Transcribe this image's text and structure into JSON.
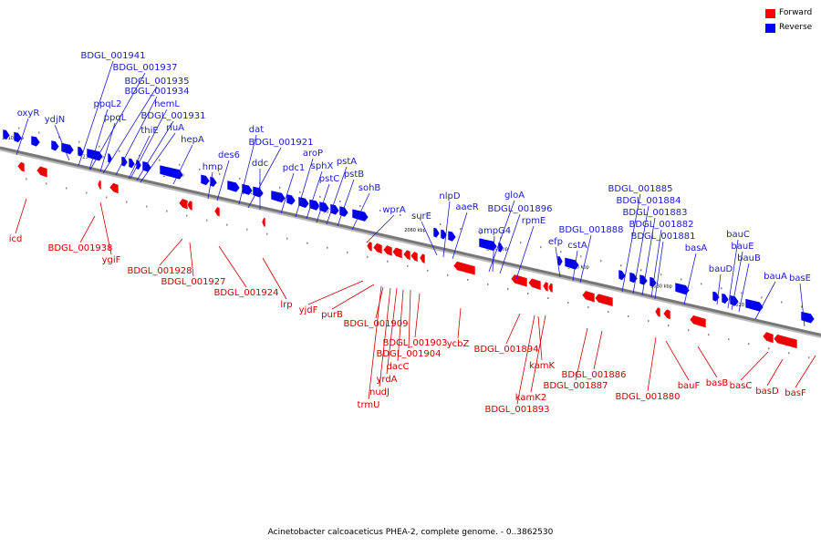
{
  "legend": {
    "forward": {
      "label": "Forward",
      "color": "#ff0000"
    },
    "reverse": {
      "label": "Reverse",
      "color": "#0000ff"
    }
  },
  "caption": "Acinetobacter calcoaceticus PHEA-2, complete genome. - 0..3862530",
  "colors": {
    "forward": "#ee0000",
    "reverse": "#0000ee",
    "forward_label": "#cc0000",
    "reverse_label": "#1a1acc",
    "backbone": "#777777"
  },
  "scale_ticks": [
    "2110 kbp",
    "2100 kbp",
    "2090 kbp",
    "2080 kbp",
    "2070 kbp",
    "2060 kbp",
    "2050 kbp",
    "2040 kbp",
    "2030 kbp",
    "2020 kbp"
  ],
  "reverse_labels": [
    "oxyR",
    "ydjN",
    "BDGL_001941",
    "BDGL_001937",
    "BDGL_001935",
    "BDGL_001934",
    "ppqL2",
    "ppqL",
    "hemL",
    "BDGL_001931",
    "thiE",
    "rluA",
    "hepA",
    "hmp",
    "des6",
    "dat",
    "BDGL_001921",
    "ddc",
    "pdc1",
    "aroP",
    "sphX",
    "pstC",
    "pstA",
    "pstB",
    "sohB",
    "wprA",
    "surE",
    "nlpD",
    "aaeR",
    "gloA",
    "BDGL_001896",
    "ampG4",
    "rpmE",
    "efp",
    "BDGL_001888",
    "cstA",
    "BDGL_001885",
    "BDGL_001884",
    "BDGL_001883",
    "BDGL_001882",
    "BDGL_001881",
    "basA",
    "bauC",
    "bauD",
    "bauE",
    "bauB",
    "bauA",
    "basE"
  ],
  "forward_labels": [
    "icd",
    "BDGL_001938",
    "ygiF",
    "BDGL_001928",
    "BDGL_001927",
    "BDGL_001924",
    "lrp",
    "yjdF",
    "purB",
    "BDGL_001909",
    "BDGL_001903",
    "BDGL_001904",
    "dacC",
    "yrdA",
    "nudJ",
    "trmU",
    "ycbZ",
    "BDGL_001894",
    "kamK",
    "kamK2",
    "BDGL_001893",
    "BDGL_001886",
    "BDGL_001887",
    "BDGL_001880",
    "bauF",
    "basB",
    "basC",
    "basD",
    "basF"
  ]
}
